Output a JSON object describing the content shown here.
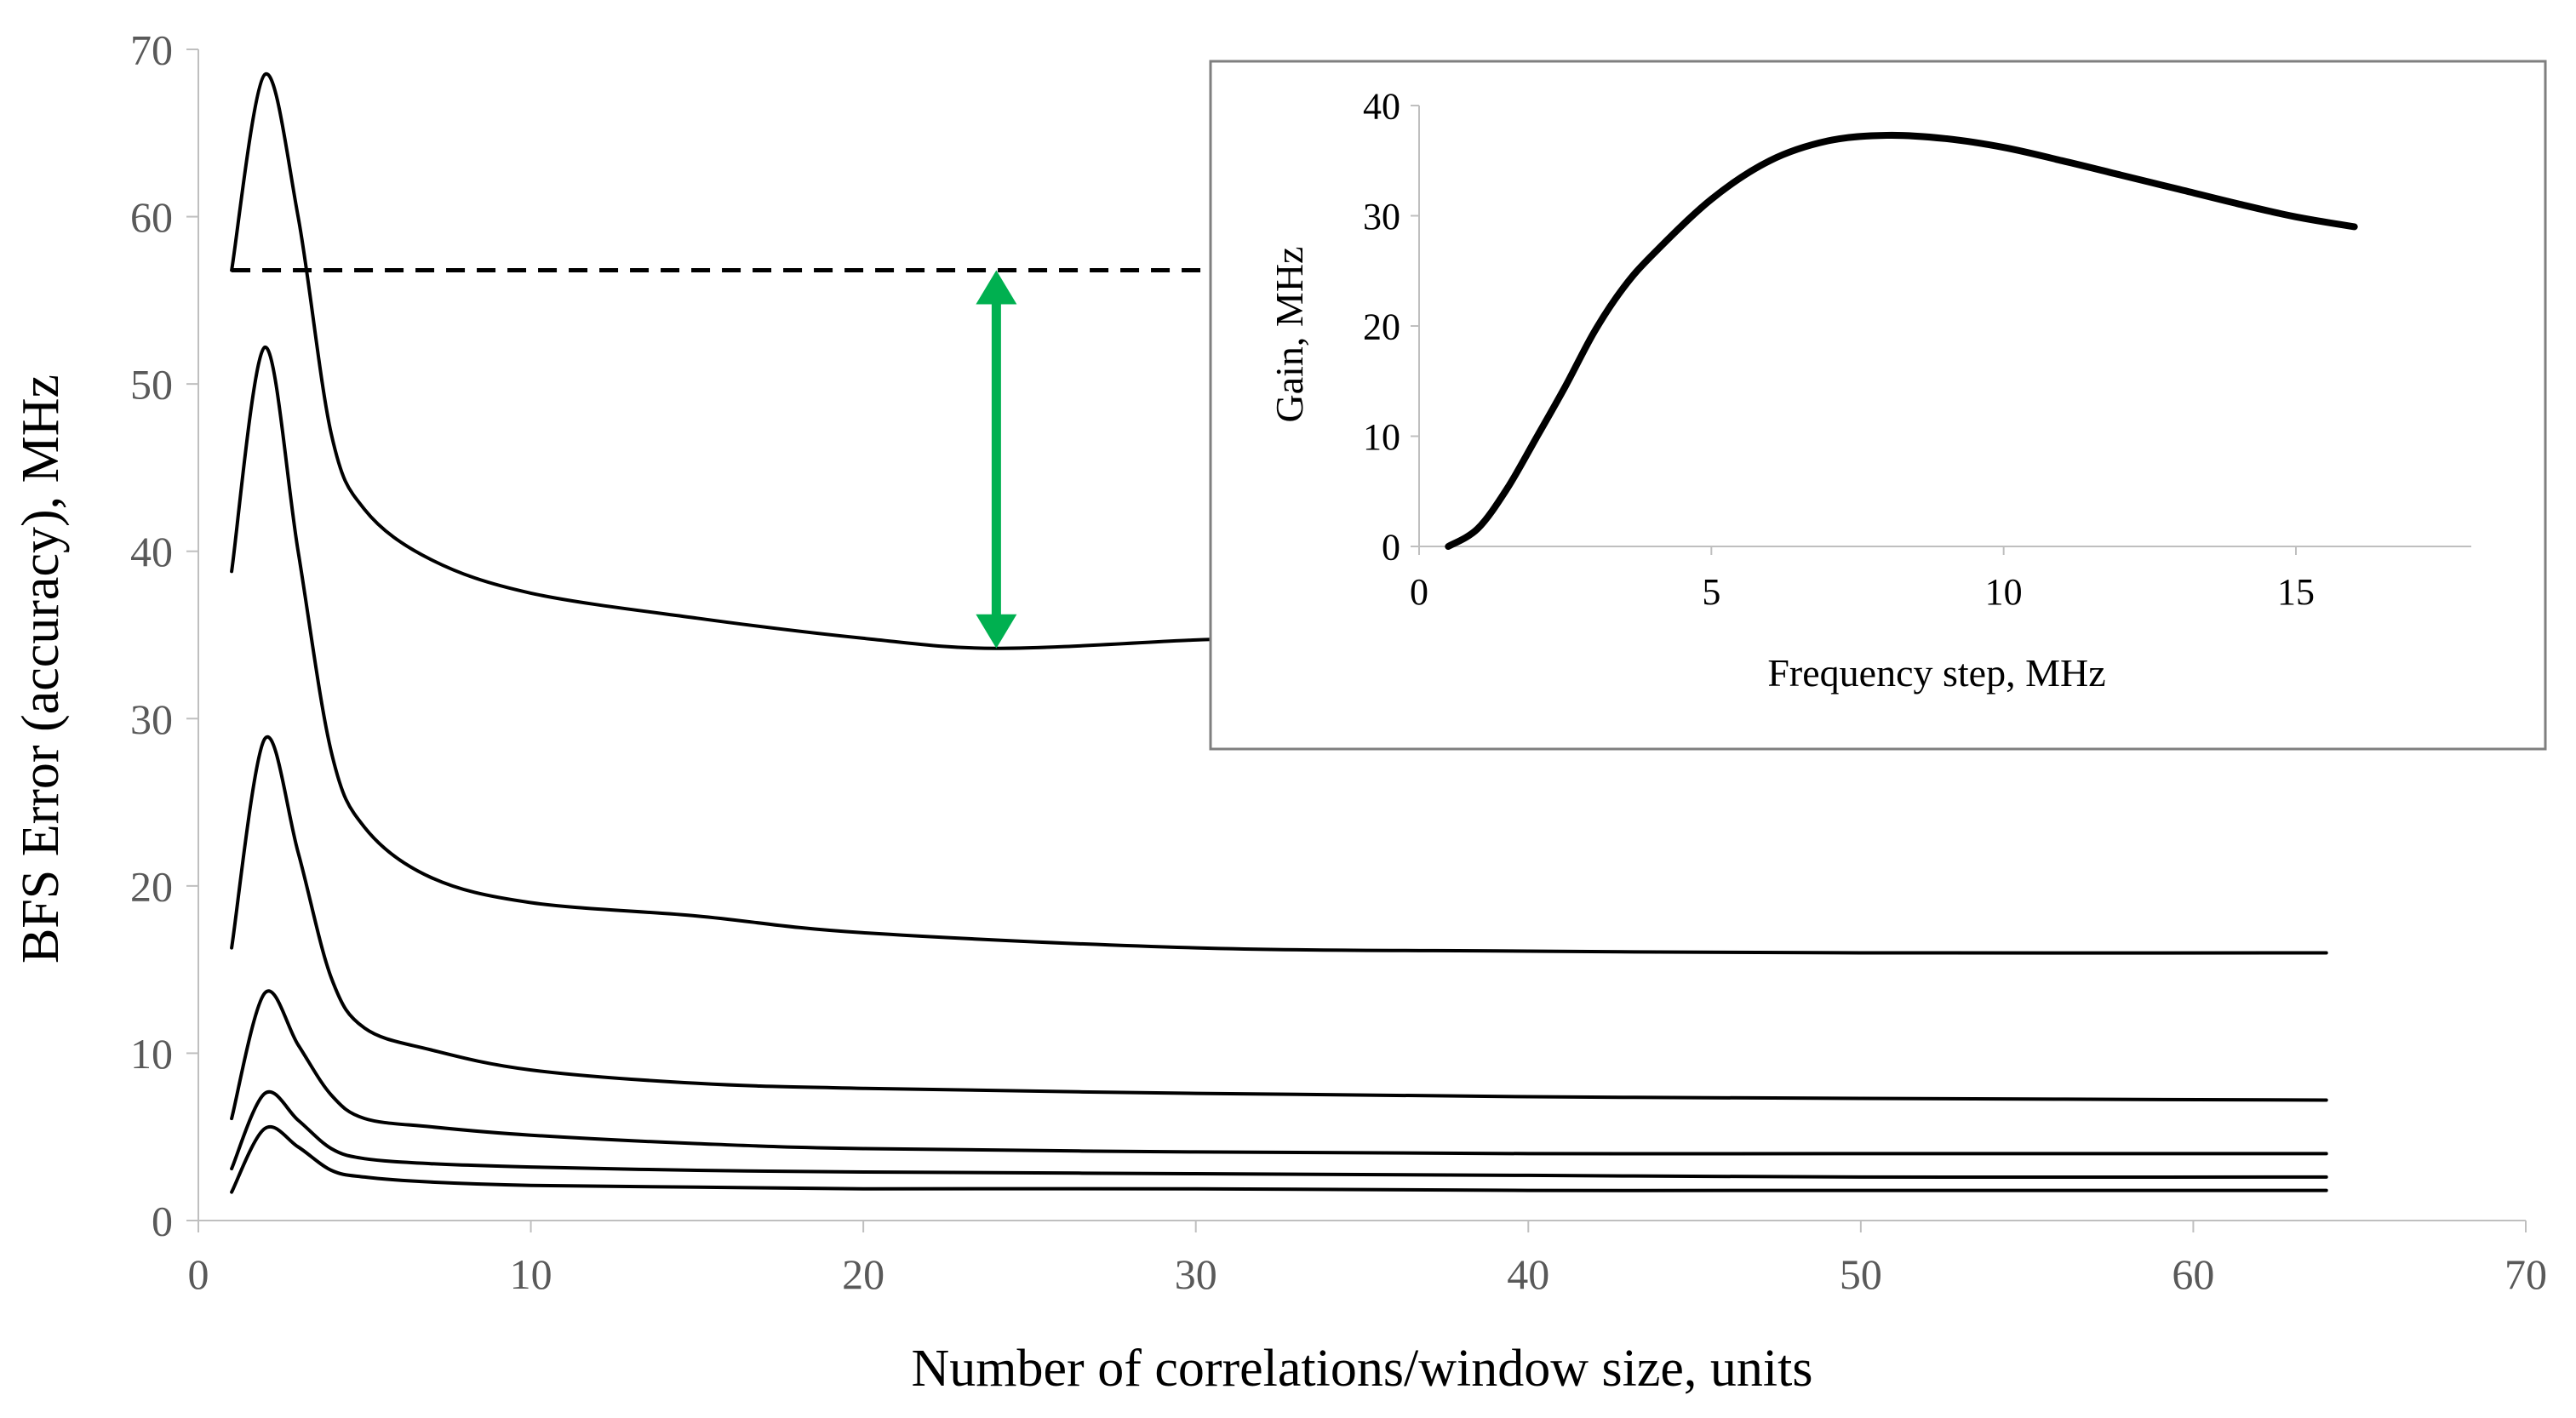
{
  "chart_data": [
    {
      "type": "line",
      "title": "",
      "xlabel": "Number of correlations/window size, units",
      "ylabel": "BFS Error (accuracy),  MHz",
      "xlim": [
        0,
        70
      ],
      "ylim": [
        0,
        70
      ],
      "xticks": [
        "0",
        "10",
        "20",
        "30",
        "40",
        "50",
        "60",
        "70"
      ],
      "yticks": [
        "0",
        "10",
        "20",
        "30",
        "40",
        "50",
        "60",
        "70"
      ],
      "grid": false,
      "series": [
        {
          "color": "#000000",
          "x": [
            1,
            2,
            3,
            4,
            5,
            7,
            10,
            15,
            20,
            24,
            30,
            32
          ],
          "y": [
            56.8,
            68.5,
            60,
            47,
            42.5,
            39.5,
            37.5,
            36,
            34.8,
            34.2,
            34.7,
            34.8
          ]
        },
        {
          "color": "#000000",
          "x": [
            1,
            2,
            3,
            4,
            5,
            7,
            10,
            15,
            20,
            30,
            40,
            50,
            64
          ],
          "y": [
            38.8,
            52.2,
            40,
            28,
            23.5,
            20.5,
            19,
            18.2,
            17.2,
            16.3,
            16.1,
            16.0,
            16.0
          ]
        },
        {
          "color": "#000000",
          "x": [
            1,
            2,
            3,
            4,
            5,
            7,
            10,
            15,
            20,
            30,
            40,
            50,
            64
          ],
          "y": [
            16.3,
            28.8,
            22,
            14.5,
            11.5,
            10.2,
            9.0,
            8.2,
            7.9,
            7.6,
            7.4,
            7.3,
            7.2
          ]
        },
        {
          "color": "#000000",
          "x": [
            1,
            2,
            3,
            4,
            5,
            7,
            10,
            15,
            20,
            30,
            40,
            50,
            64
          ],
          "y": [
            6.1,
            13.6,
            10.5,
            7.5,
            6.1,
            5.6,
            5.1,
            4.6,
            4.3,
            4.1,
            4.0,
            4.0,
            4.0
          ]
        },
        {
          "color": "#000000",
          "x": [
            1,
            2,
            3,
            4,
            5,
            7,
            10,
            15,
            20,
            30,
            40,
            50,
            64
          ],
          "y": [
            3.1,
            7.6,
            6.0,
            4.3,
            3.7,
            3.4,
            3.2,
            3.0,
            2.9,
            2.8,
            2.7,
            2.6,
            2.6
          ]
        },
        {
          "color": "#000000",
          "x": [
            1,
            2,
            3,
            4,
            5,
            7,
            10,
            15,
            20,
            30,
            40,
            50,
            64
          ],
          "y": [
            1.7,
            5.5,
            4.4,
            3.0,
            2.6,
            2.3,
            2.1,
            2.0,
            1.9,
            1.9,
            1.8,
            1.8,
            1.8
          ]
        }
      ],
      "annotations": [
        {
          "kind": "dashed-reference-line",
          "color": "#000000",
          "y": 56.8,
          "x_range": [
            1,
            30.5
          ]
        },
        {
          "kind": "double-arrow",
          "color": "#00b050",
          "x": 24,
          "y_range": [
            34.2,
            56.8
          ]
        }
      ]
    },
    {
      "type": "line",
      "title": "",
      "xlabel": "Frequency step, MHz",
      "ylabel": "Gain, MHz",
      "xlim": [
        0,
        18
      ],
      "ylim": [
        0,
        40
      ],
      "xticks": [
        "0",
        "5",
        "10",
        "15"
      ],
      "yticks": [
        "0",
        "10",
        "20",
        "30",
        "40"
      ],
      "grid": false,
      "series": [
        {
          "color": "#000000",
          "x": [
            0.5,
            1,
            1.5,
            2,
            2.5,
            3,
            3.5,
            4,
            5,
            6,
            7,
            8,
            9,
            10,
            11,
            12,
            13,
            14,
            15,
            16
          ],
          "y": [
            0,
            1.6,
            5.2,
            9.8,
            14.5,
            19.5,
            23.5,
            26.5,
            31.5,
            35.0,
            36.8,
            37.3,
            37.0,
            36.2,
            35.0,
            33.7,
            32.4,
            31.1,
            29.9,
            29.0
          ]
        }
      ]
    }
  ]
}
